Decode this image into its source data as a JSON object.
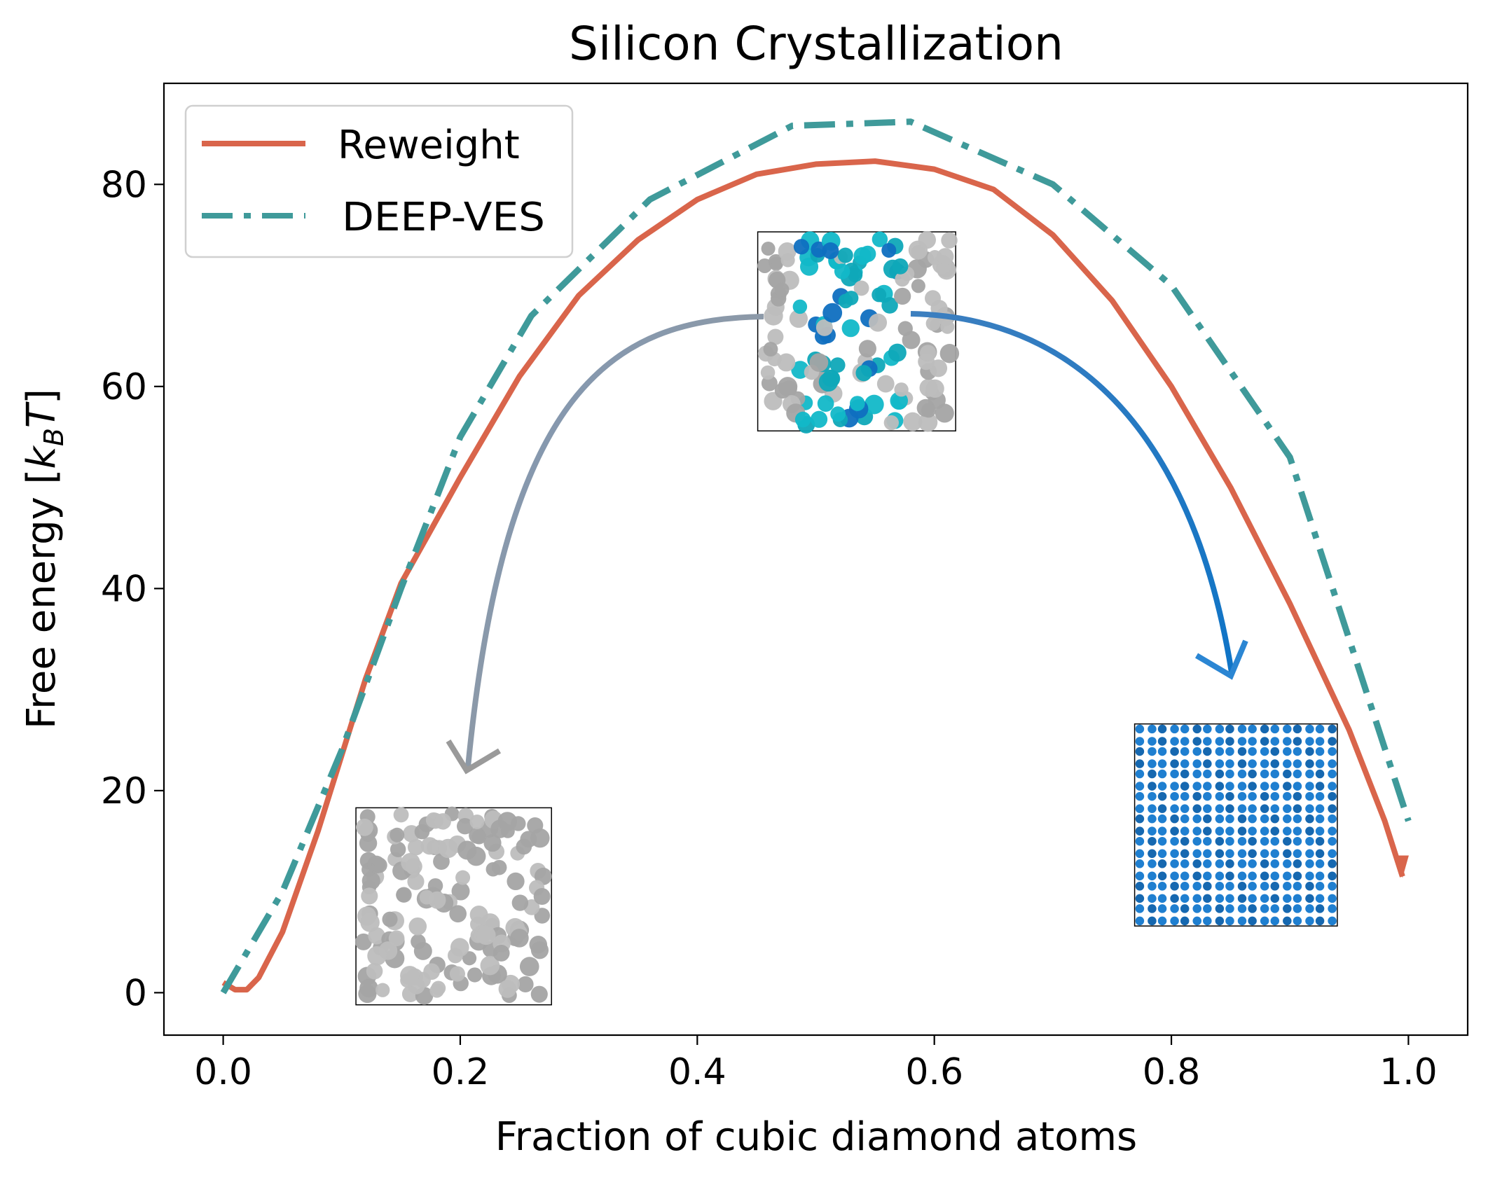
{
  "colors": {
    "reweight": "#d9654b",
    "deep_ves": "#3f9a9a",
    "arrow_left": "#8e939c",
    "arrow_right": "#1c76c4",
    "amorphous_atom": "#bdbdbd",
    "crystal_atom": "#1f7fd0",
    "nucleus_atom": "#12b8c8"
  },
  "chart_data": {
    "type": "line",
    "title": "Silicon Crystallization",
    "xlabel": "Fraction of cubic diamond atoms",
    "ylabel_prefix": "Free energy [",
    "ylabel_k": "k",
    "ylabel_sub": "B",
    "ylabel_T": "T",
    "ylabel_suffix": "]",
    "xlim": [
      -0.05,
      1.05
    ],
    "ylim": [
      -4.2,
      90.0
    ],
    "xticks": [
      0.0,
      0.2,
      0.4,
      0.6,
      0.8,
      1.0
    ],
    "xtick_labels": [
      "0.0",
      "0.2",
      "0.4",
      "0.6",
      "0.8",
      "1.0"
    ],
    "yticks": [
      0,
      20,
      40,
      60,
      80
    ],
    "ytick_labels": [
      "0",
      "20",
      "40",
      "60",
      "80"
    ],
    "legend_position": "upper-left",
    "series": [
      {
        "name": "Reweight",
        "style": "solid",
        "x": [
          0.0,
          0.01,
          0.02,
          0.03,
          0.05,
          0.08,
          0.12,
          0.15,
          0.2,
          0.25,
          0.3,
          0.35,
          0.4,
          0.45,
          0.5,
          0.55,
          0.6,
          0.65,
          0.7,
          0.75,
          0.8,
          0.85,
          0.9,
          0.95,
          0.98,
          0.995
        ],
        "y": [
          1.0,
          0.3,
          0.3,
          1.5,
          6.0,
          16.0,
          31.0,
          40.5,
          51.0,
          61.0,
          69.0,
          74.5,
          78.5,
          81.0,
          82.0,
          82.3,
          81.5,
          79.5,
          75.0,
          68.5,
          60.0,
          50.0,
          38.5,
          26.0,
          17.0,
          11.5
        ]
      },
      {
        "name": "DEEP-VES",
        "style": "dashdot",
        "x": [
          0.0,
          0.02,
          0.05,
          0.1,
          0.15,
          0.2,
          0.26,
          0.36,
          0.48,
          0.58,
          0.7,
          0.8,
          0.9,
          1.0
        ],
        "y": [
          0.0,
          4.0,
          10.0,
          24.0,
          40.0,
          55.0,
          67.0,
          78.5,
          85.8,
          86.2,
          80.0,
          70.0,
          53.0,
          17.0
        ]
      }
    ],
    "annotations": [
      {
        "name": "amorphous-structure",
        "x0": 0.112,
        "x1": 0.277,
        "y0": -1.2,
        "y1": 18.3
      },
      {
        "name": "nucleus-structure",
        "x0": 0.451,
        "x1": 0.618,
        "y0": 55.6,
        "y1": 75.3
      },
      {
        "name": "crystal-structure",
        "x0": 0.769,
        "x1": 0.94,
        "y0": 6.6,
        "y1": 26.6
      }
    ]
  }
}
